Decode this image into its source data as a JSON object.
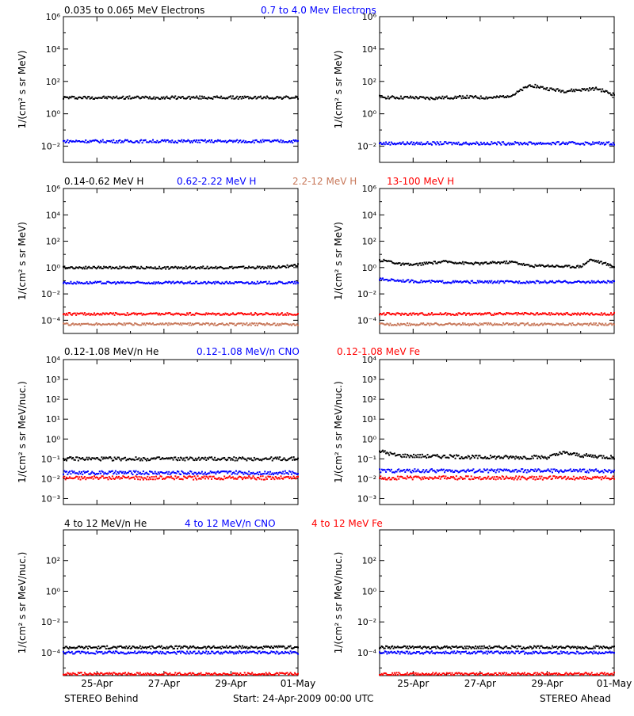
{
  "series_colors": {
    "black": "#000000",
    "blue": "#0000ff",
    "tan": "#c8785a",
    "red": "#ff0000"
  },
  "legends": [
    [
      {
        "text": "0.035 to 0.065 MeV Electrons",
        "color": "black"
      },
      {
        "text": "0.7 to 4.0 Mev Electrons",
        "color": "blue"
      }
    ],
    [
      {
        "text": "0.14-0.62 MeV H",
        "color": "black"
      },
      {
        "text": "0.62-2.22 MeV H",
        "color": "blue"
      },
      {
        "text": "2.2-12 MeV H",
        "color": "tan"
      },
      {
        "text": "13-100 MeV H",
        "color": "red"
      }
    ],
    [
      {
        "text": "0.12-1.08 MeV/n He",
        "color": "black"
      },
      {
        "text": "0.12-1.08 MeV/n CNO",
        "color": "blue"
      },
      {
        "text": "0.12-1.08 MeV Fe",
        "color": "red"
      }
    ],
    [
      {
        "text": "4 to 12 MeV/n He",
        "color": "black"
      },
      {
        "text": "4 to 12 MeV/n CNO",
        "color": "blue"
      },
      {
        "text": "4 to 12 MeV Fe",
        "color": "red"
      }
    ]
  ],
  "footer": {
    "left": "STEREO Behind",
    "center": "Start: 24-Apr-2009 00:00 UTC",
    "right": "STEREO Ahead"
  },
  "x_tick_labels": [
    "25-Apr",
    "27-Apr",
    "29-Apr",
    "01-May"
  ],
  "chart_data": [
    {
      "type": "scatter",
      "row": 1,
      "spacecraft": "STEREO Behind",
      "ylabel": "1/(cm² s sr MeV)",
      "xlim": [
        0,
        7
      ],
      "yscale": "log",
      "ylim_exp": [
        -3,
        6
      ],
      "ytick_exps": [
        -2,
        0,
        2,
        4,
        6
      ],
      "series": [
        {
          "name": "0.035 to 0.065 MeV Electrons",
          "color": "black",
          "x": [
            0,
            1,
            2,
            3,
            4,
            5,
            6,
            7
          ],
          "y": [
            10,
            10,
            10,
            10,
            10,
            10,
            10,
            10
          ]
        },
        {
          "name": "0.7 to 4.0 Mev Electrons",
          "color": "blue",
          "x": [
            0,
            1,
            2,
            3,
            4,
            5,
            6,
            7
          ],
          "y": [
            0.02,
            0.02,
            0.02,
            0.02,
            0.02,
            0.02,
            0.02,
            0.02
          ]
        }
      ]
    },
    {
      "type": "scatter",
      "row": 1,
      "spacecraft": "STEREO Ahead",
      "ylabel": "1/(cm² s sr MeV)",
      "xlim": [
        0,
        7
      ],
      "yscale": "log",
      "ylim_exp": [
        -3,
        6
      ],
      "ytick_exps": [
        -2,
        0,
        2,
        4,
        6
      ],
      "series": [
        {
          "name": "0.035 to 0.065 MeV Electrons",
          "color": "black",
          "x": [
            0,
            0.5,
            1,
            1.5,
            2,
            2.5,
            3,
            3.5,
            4,
            4.5,
            5,
            5.5,
            6,
            6.5,
            7
          ],
          "y": [
            11,
            10,
            10,
            9,
            10,
            11,
            10,
            10,
            15,
            60,
            35,
            25,
            30,
            35,
            15
          ]
        },
        {
          "name": "0.7 to 4.0 Mev Electrons",
          "color": "blue",
          "x": [
            0,
            1,
            2,
            3,
            4,
            5,
            6,
            7
          ],
          "y": [
            0.015,
            0.015,
            0.015,
            0.015,
            0.015,
            0.015,
            0.015,
            0.015
          ]
        }
      ]
    },
    {
      "type": "scatter",
      "row": 2,
      "spacecraft": "STEREO Behind",
      "ylabel": "1/(cm² s sr MeV)",
      "xlim": [
        0,
        7
      ],
      "yscale": "log",
      "ylim_exp": [
        -5,
        6
      ],
      "ytick_exps": [
        -4,
        -2,
        0,
        2,
        4,
        6
      ],
      "series": [
        {
          "name": "0.14-0.62 MeV H",
          "color": "black",
          "x": [
            0,
            1,
            2,
            3,
            4,
            5,
            6,
            6.5,
            7
          ],
          "y": [
            1.0,
            1.0,
            1.0,
            0.95,
            1.0,
            1.0,
            1.0,
            1.1,
            1.6
          ]
        },
        {
          "name": "0.62-2.22 MeV H",
          "color": "blue",
          "x": [
            0,
            1,
            2,
            3,
            4,
            5,
            6,
            7
          ],
          "y": [
            0.07,
            0.07,
            0.07,
            0.07,
            0.07,
            0.07,
            0.07,
            0.07
          ]
        },
        {
          "name": "2.2-12 MeV H",
          "color": "tan",
          "x": [
            0,
            1,
            2,
            3,
            4,
            5,
            6,
            7
          ],
          "y": [
            5e-05,
            5e-05,
            5e-05,
            5e-05,
            5e-05,
            5e-05,
            5e-05,
            5e-05
          ]
        },
        {
          "name": "13-100 MeV H",
          "color": "red",
          "x": [
            0,
            1,
            2,
            3,
            4,
            5,
            6,
            7
          ],
          "y": [
            0.0003,
            0.0003,
            0.0003,
            0.0003,
            0.0003,
            0.0003,
            0.0003,
            0.0003
          ]
        }
      ]
    },
    {
      "type": "scatter",
      "row": 2,
      "spacecraft": "STEREO Ahead",
      "ylabel": "1/(cm² s sr MeV)",
      "xlim": [
        0,
        7
      ],
      "yscale": "log",
      "ylim_exp": [
        -5,
        6
      ],
      "ytick_exps": [
        -4,
        -2,
        0,
        2,
        4,
        6
      ],
      "series": [
        {
          "name": "0.14-0.62 MeV H",
          "color": "black",
          "x": [
            0,
            0.3,
            0.6,
            1,
            1.5,
            2,
            2.5,
            3,
            3.5,
            4,
            4.5,
            5,
            5.5,
            6,
            6.3,
            6.6,
            7
          ],
          "y": [
            3.5,
            3,
            1.8,
            1.6,
            2.2,
            2.8,
            2.2,
            2,
            2.4,
            2.6,
            1.3,
            1.4,
            1.2,
            1.2,
            4,
            2.5,
            1.2
          ]
        },
        {
          "name": "0.62-2.22 MeV H",
          "color": "blue",
          "x": [
            0,
            1,
            2,
            3,
            4,
            5,
            6,
            7
          ],
          "y": [
            0.13,
            0.09,
            0.08,
            0.08,
            0.08,
            0.08,
            0.08,
            0.08
          ]
        },
        {
          "name": "2.2-12 MeV H",
          "color": "tan",
          "x": [
            0,
            1,
            2,
            3,
            4,
            5,
            6,
            7
          ],
          "y": [
            5e-05,
            5e-05,
            5e-05,
            5e-05,
            5e-05,
            5e-05,
            5e-05,
            5e-05
          ]
        },
        {
          "name": "13-100 MeV H",
          "color": "red",
          "x": [
            0,
            1,
            2,
            3,
            4,
            5,
            6,
            7
          ],
          "y": [
            0.0003,
            0.0003,
            0.0003,
            0.0003,
            0.0003,
            0.0003,
            0.0003,
            0.0003
          ]
        }
      ]
    },
    {
      "type": "scatter",
      "row": 3,
      "spacecraft": "STEREO Behind",
      "ylabel": "1/(cm² s sr MeV/nuc.)",
      "xlim": [
        0,
        7
      ],
      "yscale": "log",
      "ylim_exp": [
        -3.3,
        4
      ],
      "ytick_exps": [
        -3,
        -2,
        -1,
        0,
        1,
        2,
        3,
        4
      ],
      "series": [
        {
          "name": "0.12-1.08 MeV/n He",
          "color": "black",
          "x": [
            0,
            1,
            2,
            3,
            4,
            5,
            6,
            7
          ],
          "y": [
            0.1,
            0.1,
            0.1,
            0.1,
            0.1,
            0.1,
            0.1,
            0.1
          ]
        },
        {
          "name": "0.12-1.08 MeV/n CNO",
          "color": "blue",
          "x": [
            0,
            1,
            2,
            3,
            4,
            5,
            6,
            7
          ],
          "y": [
            0.02,
            0.02,
            0.02,
            0.02,
            0.02,
            0.02,
            0.02,
            0.02
          ]
        },
        {
          "name": "0.12-1.08 MeV Fe",
          "color": "red",
          "x": [
            0,
            1,
            2,
            3,
            4,
            5,
            6,
            7
          ],
          "y": [
            0.011,
            0.011,
            0.011,
            0.011,
            0.011,
            0.011,
            0.011,
            0.011
          ]
        }
      ]
    },
    {
      "type": "scatter",
      "row": 3,
      "spacecraft": "STEREO Ahead",
      "ylabel": "1/(cm² s sr MeV/nuc.)",
      "xlim": [
        0,
        7
      ],
      "yscale": "log",
      "ylim_exp": [
        -3.3,
        4
      ],
      "ytick_exps": [
        -3,
        -2,
        -1,
        0,
        1,
        2,
        3,
        4
      ],
      "series": [
        {
          "name": "0.12-1.08 MeV/n He",
          "color": "black",
          "x": [
            0,
            0.5,
            1,
            2,
            3,
            4,
            5,
            5.5,
            6,
            7
          ],
          "y": [
            0.25,
            0.15,
            0.14,
            0.13,
            0.12,
            0.12,
            0.12,
            0.2,
            0.15,
            0.12
          ]
        },
        {
          "name": "0.12-1.08 MeV/n CNO",
          "color": "blue",
          "x": [
            0,
            1,
            2,
            3,
            4,
            5,
            6,
            7
          ],
          "y": [
            0.025,
            0.025,
            0.025,
            0.025,
            0.025,
            0.025,
            0.025,
            0.025
          ]
        },
        {
          "name": "0.12-1.08 MeV Fe",
          "color": "red",
          "x": [
            0,
            1,
            2,
            3,
            4,
            5,
            6,
            7
          ],
          "y": [
            0.011,
            0.011,
            0.011,
            0.011,
            0.011,
            0.011,
            0.011,
            0.011
          ]
        }
      ]
    },
    {
      "type": "scatter",
      "row": 4,
      "spacecraft": "STEREO Behind",
      "ylabel": "1/(cm² s sr MeV/nuc.)",
      "xlim": [
        0,
        7
      ],
      "yscale": "log",
      "ylim_exp": [
        -5.5,
        4
      ],
      "ytick_exps": [
        -4,
        -2,
        0,
        2
      ],
      "series": [
        {
          "name": "4 to 12 MeV/n He",
          "color": "black",
          "x": [
            0,
            1,
            2,
            3,
            4,
            5,
            6,
            7
          ],
          "y": [
            0.00022,
            0.00022,
            0.00022,
            0.00022,
            0.00022,
            0.00022,
            0.00022,
            0.00022
          ]
        },
        {
          "name": "4 to 12 MeV/n CNO",
          "color": "blue",
          "x": [
            0,
            1,
            2,
            3,
            4,
            5,
            6,
            7
          ],
          "y": [
            0.0001,
            0.0001,
            0.0001,
            0.0001,
            0.0001,
            0.0001,
            0.0001,
            0.0001
          ]
        },
        {
          "name": "4 to 12 MeV Fe",
          "color": "red",
          "x": [
            0,
            1,
            2,
            3,
            4,
            5,
            6,
            7
          ],
          "y": [
            4e-06,
            4e-06,
            4e-06,
            4e-06,
            4e-06,
            4e-06,
            4e-06,
            4e-06
          ]
        }
      ]
    },
    {
      "type": "scatter",
      "row": 4,
      "spacecraft": "STEREO Ahead",
      "ylabel": "1/(cm² s sr MeV/nuc.)",
      "xlim": [
        0,
        7
      ],
      "yscale": "log",
      "ylim_exp": [
        -5.5,
        4
      ],
      "ytick_exps": [
        -4,
        -2,
        0,
        2
      ],
      "series": [
        {
          "name": "4 to 12 MeV/n He",
          "color": "black",
          "x": [
            0,
            1,
            2,
            3,
            4,
            5,
            6,
            7
          ],
          "y": [
            0.00022,
            0.00022,
            0.00022,
            0.00022,
            0.00022,
            0.00022,
            0.00022,
            0.00022
          ]
        },
        {
          "name": "4 to 12 MeV/n CNO",
          "color": "blue",
          "x": [
            0,
            1,
            2,
            3,
            4,
            5,
            6,
            7
          ],
          "y": [
            0.0001,
            0.0001,
            0.0001,
            0.0001,
            0.0001,
            0.0001,
            0.0001,
            0.0001
          ]
        },
        {
          "name": "4 to 12 MeV Fe",
          "color": "red",
          "x": [
            0,
            1,
            2,
            3,
            4,
            5,
            6,
            7
          ],
          "y": [
            4e-06,
            4e-06,
            4e-06,
            4e-06,
            4e-06,
            4e-06,
            4e-06,
            4e-06
          ]
        }
      ]
    }
  ]
}
